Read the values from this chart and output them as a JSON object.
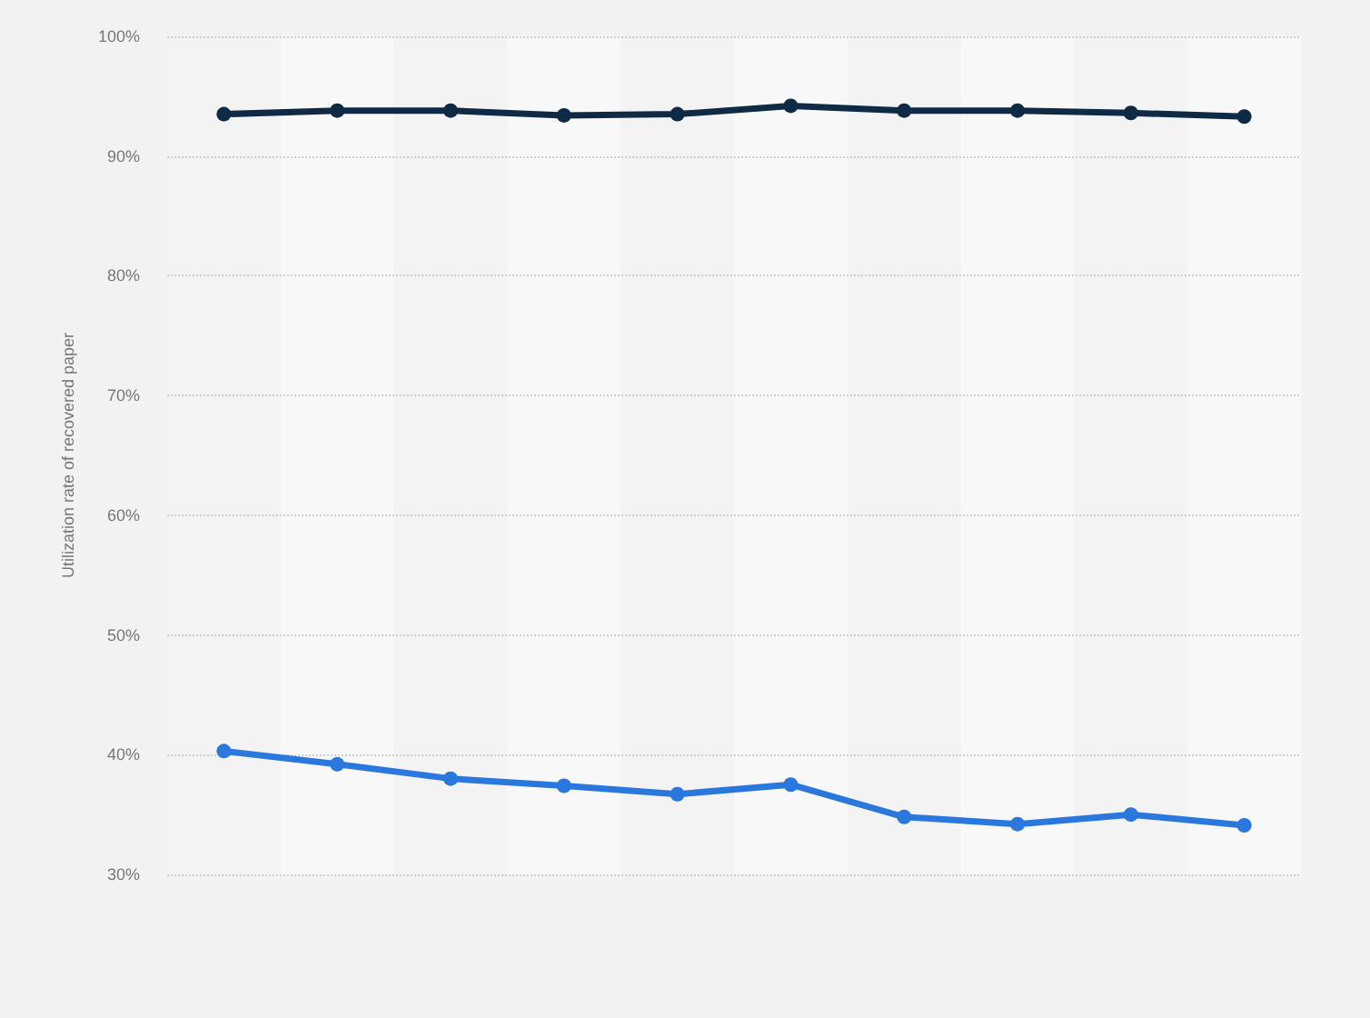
{
  "chart_data": {
    "type": "line",
    "ylabel": "Utilization rate of recovered paper",
    "categories": [
      null,
      null,
      null,
      null,
      null,
      null,
      null,
      null,
      null,
      null
    ],
    "series": [
      {
        "color": "#0f2a45",
        "values": [
          93.5,
          93.8,
          93.8,
          93.4,
          93.5,
          94.2,
          93.8,
          93.8,
          93.6,
          93.3
        ]
      },
      {
        "color": "#2a77dd",
        "values": [
          40.3,
          39.2,
          38.0,
          37.4,
          36.7,
          37.5,
          34.8,
          34.2,
          35.0,
          34.1
        ]
      }
    ],
    "ylim": [
      30,
      100
    ],
    "yticks": [
      {
        "value": 30,
        "label": "30%"
      },
      {
        "value": 40,
        "label": "40%"
      },
      {
        "value": 50,
        "label": "50%"
      },
      {
        "value": 60,
        "label": "60%"
      },
      {
        "value": 70,
        "label": "70%"
      },
      {
        "value": 80,
        "label": "80%"
      },
      {
        "value": 90,
        "label": "90%"
      },
      {
        "value": 100,
        "label": "100%"
      }
    ],
    "grid": "y",
    "tick_labels": "y",
    "marker": "circle",
    "line_style": "solid"
  }
}
